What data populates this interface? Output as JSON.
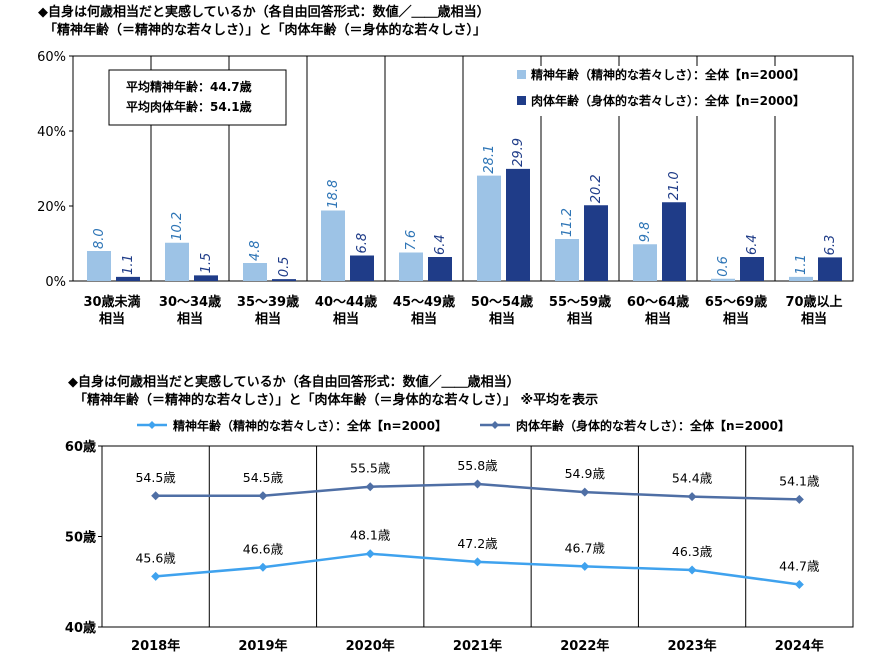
{
  "chart_data": [
    {
      "type": "bar",
      "title": "◆自身は何歳相当だと実感しているか（各自由回答形式：数値／＿＿歳相当）",
      "subtitle": "「精神年齢（＝精神的な若々しさ）」と「肉体年齢（＝身体的な若々しさ）」",
      "ylim": [
        0,
        60
      ],
      "yticks": [
        "0%",
        "20%",
        "40%",
        "60%"
      ],
      "ytick_values": [
        0,
        20,
        40,
        60
      ],
      "categories": [
        [
          "30歳未満",
          "相当"
        ],
        [
          "30～34歳",
          "相当"
        ],
        [
          "35～39歳",
          "相当"
        ],
        [
          "40～44歳",
          "相当"
        ],
        [
          "45～49歳",
          "相当"
        ],
        [
          "50～54歳",
          "相当"
        ],
        [
          "55～59歳",
          "相当"
        ],
        [
          "60～64歳",
          "相当"
        ],
        [
          "65～69歳",
          "相当"
        ],
        [
          "70歳以上",
          "相当"
        ]
      ],
      "series": [
        {
          "name": "精神年齢（精神的な若々しさ）：全体【n=2000】",
          "color": "#9dc3e6",
          "values": [
            8.0,
            10.2,
            4.8,
            18.8,
            7.6,
            28.1,
            11.2,
            9.8,
            0.6,
            1.1
          ],
          "labels": [
            "8.0",
            "10.2",
            "4.8",
            "18.8",
            "7.6",
            "28.1",
            "11.2",
            "9.8",
            "0.6",
            "1.1"
          ]
        },
        {
          "name": "肉体年齢（身体的な若々しさ）：全体【n=2000】",
          "color": "#1f3c88",
          "values": [
            1.1,
            1.5,
            0.5,
            6.8,
            6.4,
            29.9,
            20.2,
            21.0,
            6.4,
            6.3
          ],
          "labels": [
            "1.1",
            "1.5",
            "0.5",
            "6.8",
            "6.4",
            "29.9",
            "20.2",
            "21.0",
            "6.4",
            "6.3"
          ]
        }
      ],
      "annotation": [
        "平均精神年齢：44.7歳",
        "平均肉体年齢：54.1歳"
      ],
      "legend_position": "top-right",
      "grid": "vertical"
    },
    {
      "type": "line",
      "title": "◆自身は何歳相当だと実感しているか（各自由回答形式：数値／＿＿歳相当）",
      "subtitle": "「精神年齢（＝精神的な若々しさ）」と「肉体年齢（＝身体的な若々しさ）」 ※平均を表示",
      "ylim": [
        40,
        60
      ],
      "yticks": [
        "40歳",
        "50歳",
        "60歳"
      ],
      "ytick_values": [
        40,
        50,
        60
      ],
      "categories": [
        "2018年",
        "2019年",
        "2020年",
        "2021年",
        "2022年",
        "2023年",
        "2024年"
      ],
      "series": [
        {
          "name": "精神年齢（精神的な若々しさ）：全体【n=2000】",
          "color": "#3fa2ee",
          "values": [
            45.6,
            46.6,
            48.1,
            47.2,
            46.7,
            46.3,
            44.7
          ],
          "labels": [
            "45.6歳",
            "46.6歳",
            "48.1歳",
            "47.2歳",
            "46.7歳",
            "46.3歳",
            "44.7歳"
          ]
        },
        {
          "name": "肉体年齢（身体的な若々しさ）：全体【n=2000】",
          "color": "#4f6fa5",
          "values": [
            54.5,
            54.5,
            55.5,
            55.8,
            54.9,
            54.4,
            54.1
          ],
          "labels": [
            "54.5歳",
            "54.5歳",
            "55.5歳",
            "55.8歳",
            "54.9歳",
            "54.4歳",
            "54.1歳"
          ]
        }
      ],
      "legend_position": "top",
      "grid": "vertical"
    }
  ]
}
